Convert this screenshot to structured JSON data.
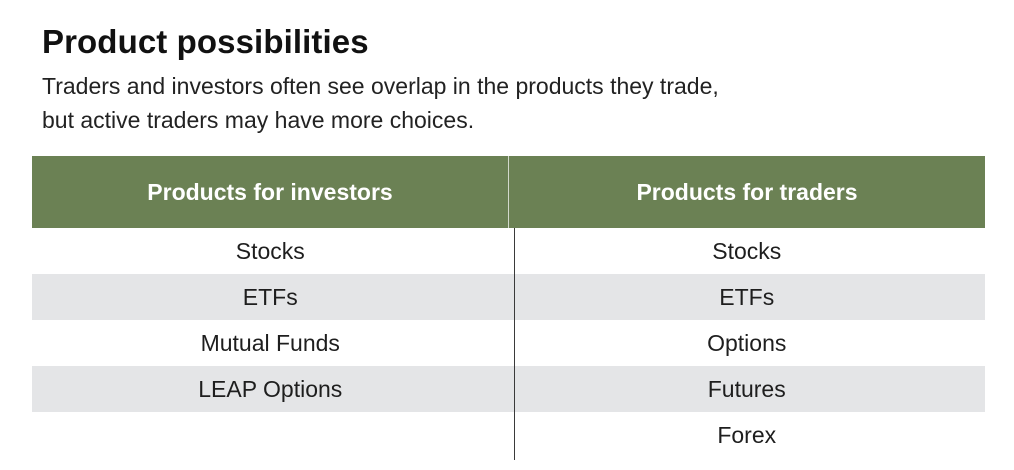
{
  "header": {
    "title": "Product possibilities",
    "subtitle_line1": "Traders and investors often see overlap in the products they trade,",
    "subtitle_line2": "but active traders may have more choices."
  },
  "table": {
    "columns": [
      "Products for investors",
      "Products for traders"
    ],
    "rows": [
      [
        "Stocks",
        "Stocks"
      ],
      [
        "ETFs",
        "ETFs"
      ],
      [
        "Mutual Funds",
        "Options"
      ],
      [
        "LEAP Options",
        "Futures"
      ],
      [
        "",
        "Forex"
      ]
    ]
  },
  "colors": {
    "header_bg": "#6b8154",
    "shaded_row": "#e4e5e7"
  }
}
